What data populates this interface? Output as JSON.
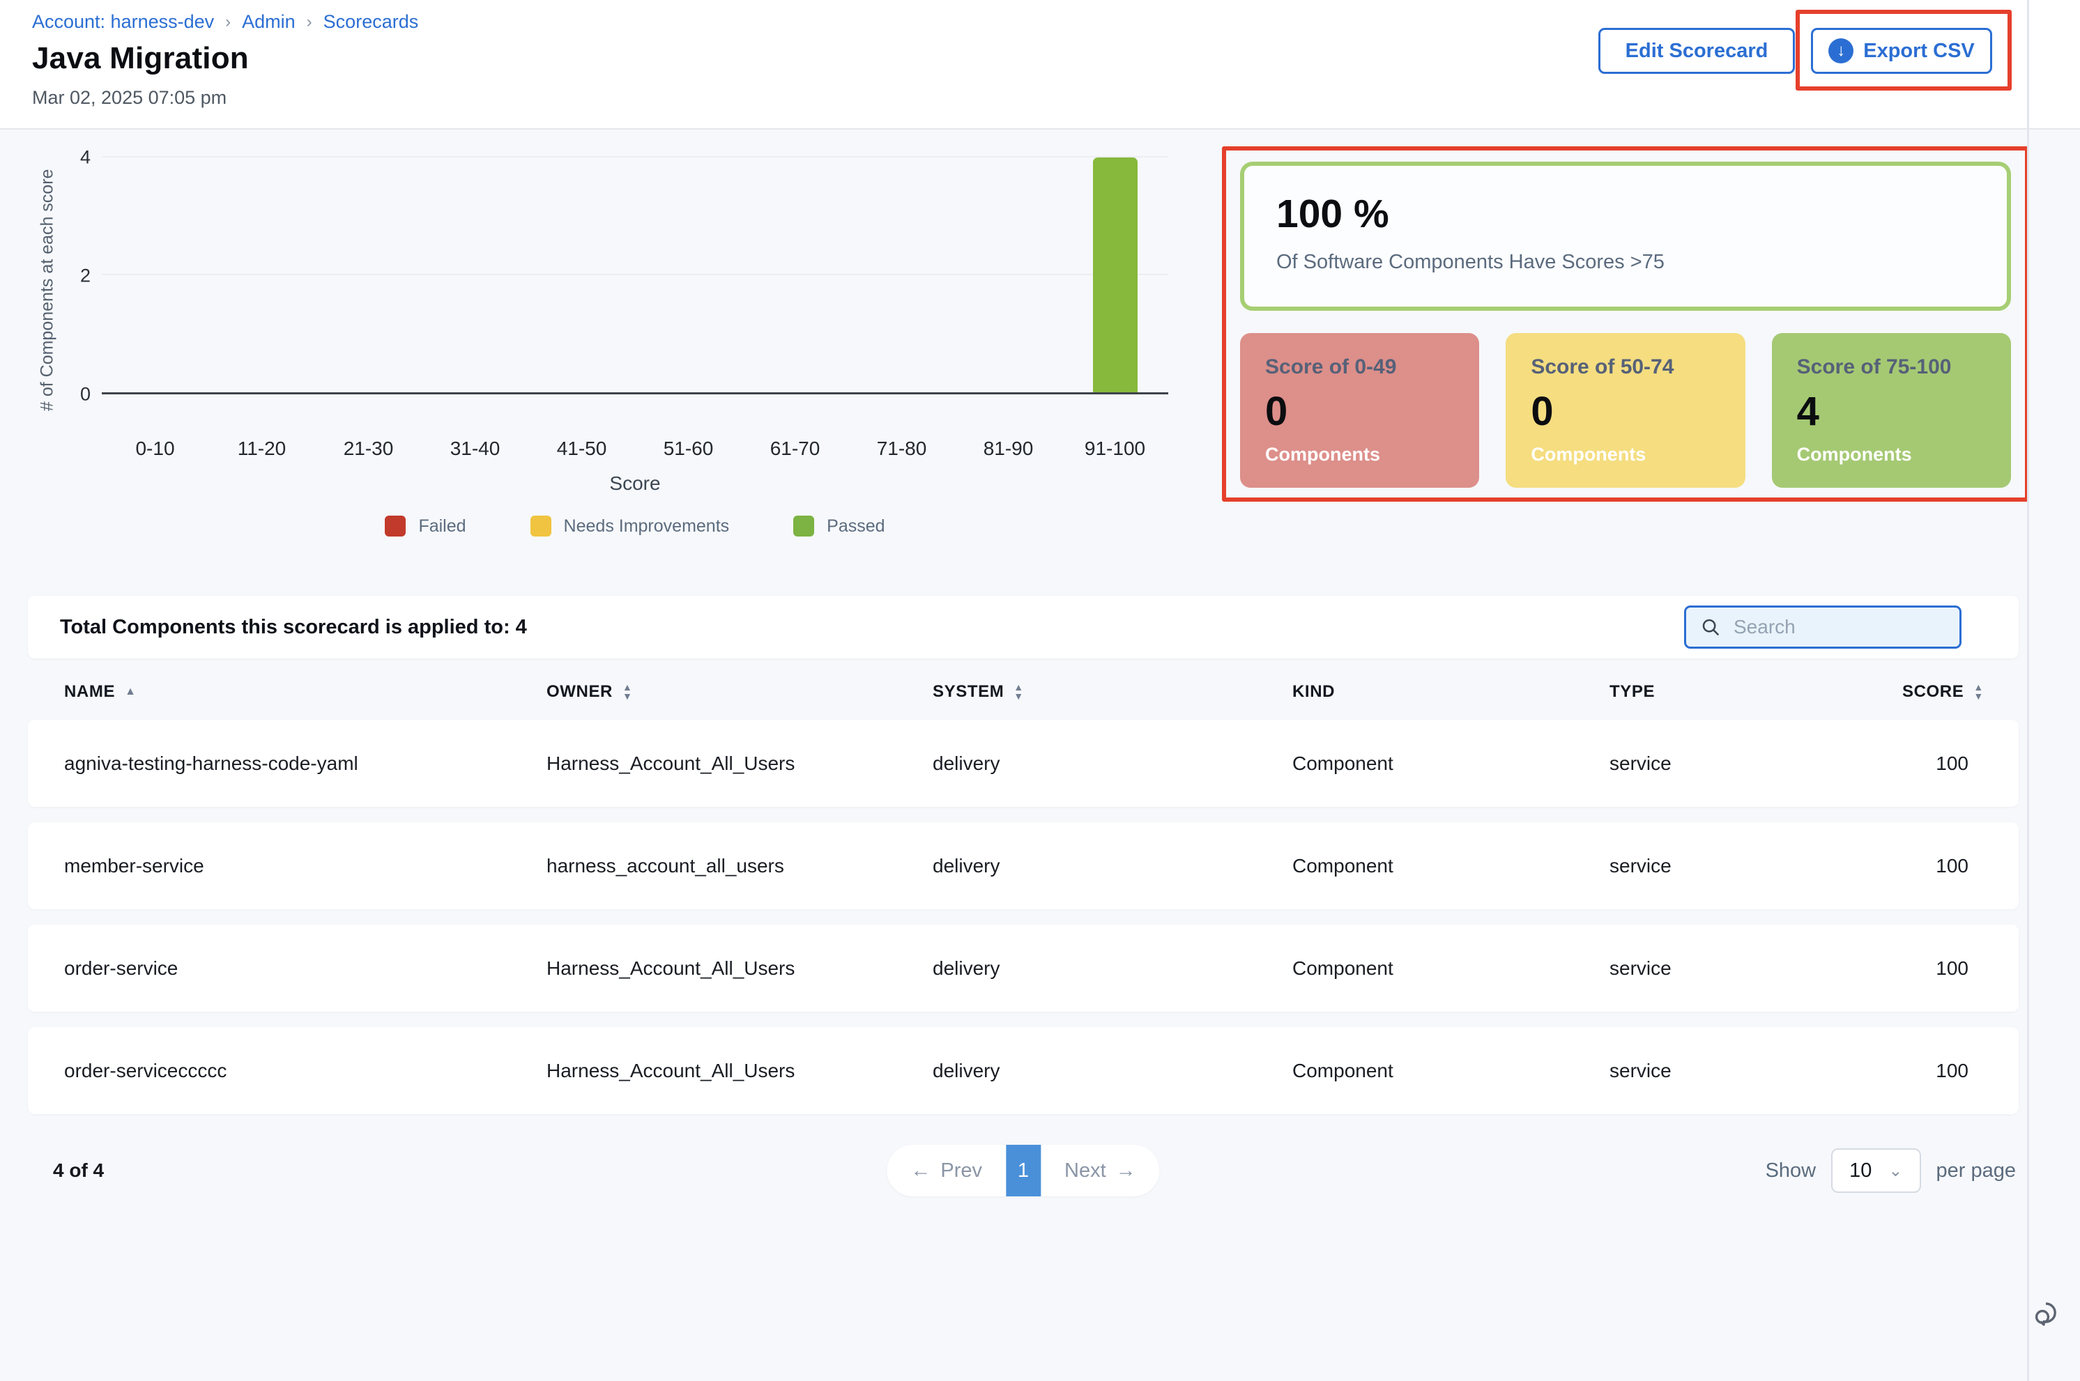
{
  "breadcrumb": {
    "items": [
      "Account: harness-dev",
      "Admin",
      "Scorecards"
    ]
  },
  "header": {
    "title": "Java Migration",
    "timestamp": "Mar 02, 2025 07:05 pm",
    "edit_button": "Edit Scorecard",
    "export_button": "Export CSV"
  },
  "chart_data": {
    "type": "bar",
    "title": "",
    "categories": [
      "0-10",
      "11-20",
      "21-30",
      "31-40",
      "41-50",
      "51-60",
      "61-70",
      "71-80",
      "81-90",
      "91-100"
    ],
    "values": [
      0,
      0,
      0,
      0,
      0,
      0,
      0,
      0,
      0,
      4
    ],
    "bar_color": "#87b93c",
    "xlabel": "Score",
    "ylabel": "# of Components at each score",
    "ylim": [
      0,
      4
    ],
    "yticks": [
      0,
      2,
      4
    ],
    "grid": "horizontal",
    "legend_position": "bottom",
    "legend": [
      {
        "label": "Failed",
        "color": "#c23a2b"
      },
      {
        "label": "Needs Improvements",
        "color": "#f0c440"
      },
      {
        "label": "Passed",
        "color": "#7cb342"
      }
    ]
  },
  "summary": {
    "percent": "100 %",
    "caption": "Of Software Components Have Scores >75",
    "border_color": "#a6ce73",
    "cards": [
      {
        "label": "Score of 0-49",
        "value": "0",
        "unit": "Components",
        "color": "#dd8f8a"
      },
      {
        "label": "Score of 50-74",
        "value": "0",
        "unit": "Components",
        "color": "#f5dd80"
      },
      {
        "label": "Score of 75-100",
        "value": "4",
        "unit": "Components",
        "color": "#a5c973"
      }
    ]
  },
  "table": {
    "total_label": "Total Components this scorecard is applied to: 4",
    "search_placeholder": "Search",
    "columns": [
      {
        "label": "NAME",
        "sort": "asc"
      },
      {
        "label": "OWNER",
        "sort": "both"
      },
      {
        "label": "SYSTEM",
        "sort": "both"
      },
      {
        "label": "KIND",
        "sort": "none"
      },
      {
        "label": "TYPE",
        "sort": "none"
      },
      {
        "label": "SCORE",
        "sort": "both"
      }
    ],
    "rows": [
      [
        "agniva-testing-harness-code-yaml",
        "Harness_Account_All_Users",
        "delivery",
        "Component",
        "service",
        "100"
      ],
      [
        "member-service",
        "harness_account_all_users",
        "delivery",
        "Component",
        "service",
        "100"
      ],
      [
        "order-service",
        "Harness_Account_All_Users",
        "delivery",
        "Component",
        "service",
        "100"
      ],
      [
        "order-serviceccccc",
        "Harness_Account_All_Users",
        "delivery",
        "Component",
        "service",
        "100"
      ]
    ]
  },
  "pagination": {
    "count": "4 of 4",
    "prev": "Prev",
    "page": "1",
    "next": "Next",
    "show_label": "Show",
    "per_page_value": "10",
    "per_page_label": "per page"
  },
  "icons": {
    "export": "download-circle-icon",
    "search": "search-icon",
    "prev": "arrow-left-icon",
    "next": "arrow-right-icon",
    "select": "chevron-down-icon",
    "chat": "chat-bubbles-icon"
  },
  "colors": {
    "accent_blue": "#2b6ed3",
    "pagination_active_blue": "#4a90d9",
    "annotation_red": "#e5402c",
    "page_background": "#f6f8fb"
  }
}
